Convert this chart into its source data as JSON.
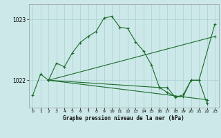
{
  "title": "Graphe pression niveau de la mer (hPa)",
  "background_color": "#cce8e8",
  "grid_color": "#aad0d0",
  "line_color": "#1a6b2a",
  "yticks": [
    1022,
    1023
  ],
  "ylim": [
    1021.55,
    1023.25
  ],
  "xlim": [
    -0.5,
    23.5
  ],
  "xticks": [
    0,
    1,
    2,
    3,
    4,
    5,
    6,
    7,
    8,
    9,
    10,
    11,
    12,
    13,
    14,
    15,
    16,
    17,
    18,
    19,
    20,
    21,
    22,
    23
  ],
  "main_x": [
    0,
    1,
    2,
    3,
    4,
    5,
    6,
    7,
    8,
    9,
    10,
    11,
    12,
    13,
    14,
    15,
    16,
    17,
    18,
    19,
    20,
    21,
    23
  ],
  "main_y": [
    1021.75,
    1022.1,
    1022.0,
    1022.28,
    1022.22,
    1022.45,
    1022.62,
    1022.72,
    1022.8,
    1023.02,
    1023.05,
    1022.87,
    1022.85,
    1022.63,
    1022.48,
    1022.25,
    1021.88,
    1021.88,
    1021.72,
    1021.76,
    1022.0,
    1022.0,
    1022.92
  ],
  "line2_x": [
    2,
    23
  ],
  "line2_y": [
    1022.0,
    1022.72
  ],
  "line3_x": [
    2,
    22
  ],
  "line3_y": [
    1022.0,
    1021.68
  ],
  "line4_x": [
    2,
    16,
    17,
    18,
    19,
    20,
    21,
    22
  ],
  "line4_y": [
    1022.0,
    1021.88,
    1021.8,
    1021.73,
    1021.73,
    1022.0,
    1022.0,
    1021.62
  ]
}
